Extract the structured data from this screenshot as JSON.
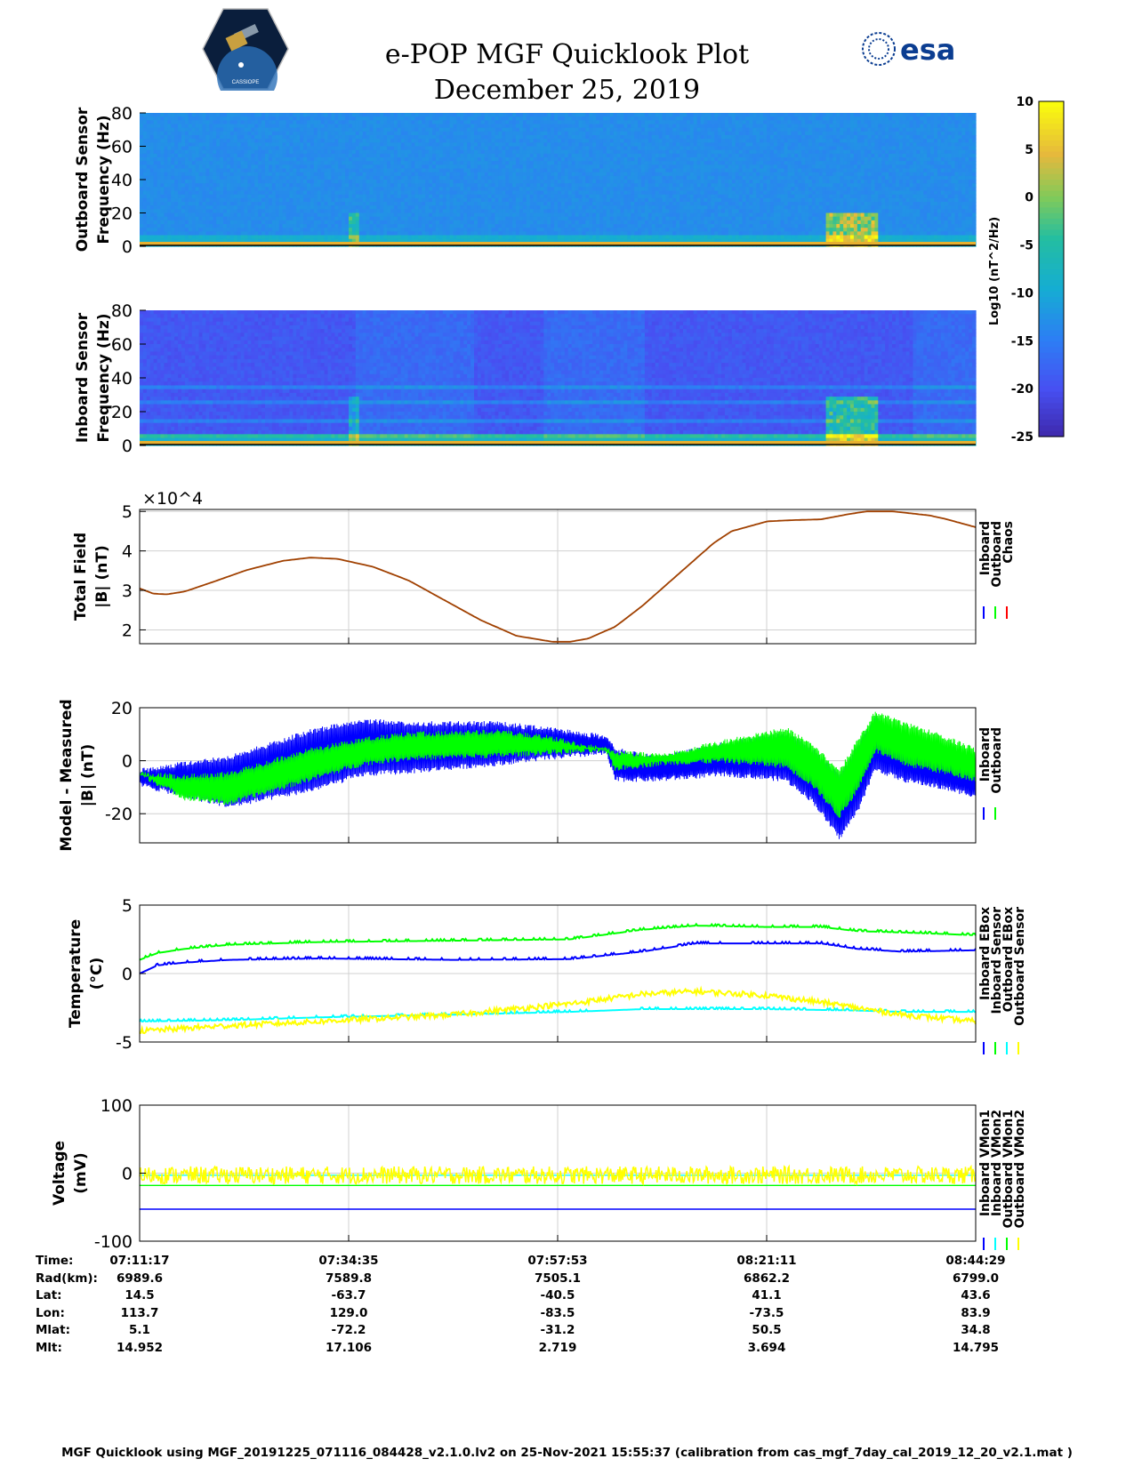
{
  "title": "e-POP MGF Quicklook Plot",
  "date": "December 25, 2019",
  "logos": {
    "left": "CASSIOPE",
    "right": "esa"
  },
  "colors": {
    "inboard": "#0000ff",
    "outboard": "#00ff00",
    "chaos": "#ff0000",
    "cyan": "#00ffff",
    "yellow": "#ffff00",
    "chaosLine": "#a04000",
    "grid": "#d0d0d0"
  },
  "footer": "MGF Quicklook using MGF_20191225_071116_084428_v2.1.0.lv2 on 25-Nov-2021 15:55:37 (calibration from cas_mgf_7day_cal_2019_12_20_v2.1.mat )",
  "position_table": {
    "labels": [
      "Time:",
      "Rad(km):",
      "Lat:",
      "Lon:",
      "Mlat:",
      "Mlt:"
    ],
    "columns": [
      [
        "07:11:17",
        "6989.6",
        "14.5",
        "113.7",
        "5.1",
        "14.952"
      ],
      [
        "07:34:35",
        "7589.8",
        "-63.7",
        "129.0",
        "-72.2",
        "17.106"
      ],
      [
        "07:57:53",
        "7505.1",
        "-40.5",
        "-83.5",
        "-31.2",
        "2.719"
      ],
      [
        "08:21:11",
        "6862.2",
        "41.1",
        "-73.5",
        "50.5",
        "3.694"
      ],
      [
        "08:44:29",
        "6799.0",
        "43.6",
        "83.9",
        "34.8",
        "14.795"
      ]
    ]
  },
  "chart_data": [
    {
      "type": "heatmap",
      "name": "outboard-spectrogram",
      "ylabel": [
        "Outboard Sensor",
        "Frequency (Hz)"
      ],
      "ylim": [
        0,
        80
      ],
      "yticks": [
        0,
        20,
        40,
        60,
        80
      ],
      "colorbar": {
        "label": "Log10 (nT^2/Hz)",
        "clim": [
          -25,
          10
        ],
        "ticks": [
          10,
          5,
          0,
          -5,
          -10,
          -15,
          -20,
          -25
        ]
      }
    },
    {
      "type": "heatmap",
      "name": "inboard-spectrogram",
      "ylabel": [
        "Inboard Sensor",
        "Frequency (Hz)"
      ],
      "ylim": [
        0,
        80
      ],
      "yticks": [
        0,
        20,
        40,
        60,
        80
      ]
    },
    {
      "type": "line",
      "name": "total-field",
      "ylabel": [
        "Total Field",
        "|B| (nT)"
      ],
      "exponent": "×10^4",
      "ylim": [
        1.65,
        5.05
      ],
      "yticks": [
        2,
        3,
        4,
        5
      ],
      "x_minutes": [
        0,
        1.5,
        3,
        5,
        8,
        12,
        16,
        19,
        22,
        26,
        30,
        34,
        38,
        42,
        46,
        48,
        50,
        53,
        56,
        60,
        64,
        66,
        70,
        73,
        76,
        79,
        81,
        84,
        88,
        90,
        93.2
      ],
      "values": [
        3.05,
        2.92,
        2.9,
        2.97,
        3.2,
        3.52,
        3.75,
        3.83,
        3.8,
        3.6,
        3.25,
        2.75,
        2.25,
        1.85,
        1.7,
        1.7,
        1.78,
        2.08,
        2.6,
        3.4,
        4.2,
        4.5,
        4.75,
        4.78,
        4.8,
        4.93,
        5.0,
        5.0,
        4.9,
        4.8,
        4.6
      ],
      "legend": [
        "Inboard",
        "Outboard",
        "Chaos"
      ]
    },
    {
      "type": "line",
      "name": "model-measured",
      "ylabel": [
        "Model - Measured",
        "|B| (nT)"
      ],
      "ylim": [
        -31,
        20
      ],
      "yticks": [
        -20,
        0,
        20
      ],
      "series": [
        {
          "name": "Inboard",
          "x_minutes": [
            0,
            5,
            10,
            19,
            25,
            30,
            40,
            45,
            52,
            53,
            58,
            65,
            72,
            75,
            78,
            80,
            82,
            85,
            88,
            93.2
          ],
          "upper": [
            -3,
            0,
            2,
            12,
            16,
            15,
            15,
            13,
            10,
            5,
            2,
            7,
            11,
            5,
            -5,
            6,
            17,
            10,
            5,
            -3
          ],
          "lower": [
            -10,
            -14,
            -18,
            -12,
            -6,
            -5,
            -2,
            0,
            2,
            -8,
            -8,
            -6,
            -8,
            -16,
            -30,
            -20,
            -4,
            -8,
            -10,
            -14
          ]
        },
        {
          "name": "Outboard",
          "x_minutes": [
            0,
            5,
            10,
            19,
            25,
            30,
            40,
            45,
            52,
            53,
            58,
            65,
            72,
            75,
            78,
            80,
            82,
            85,
            88,
            93.2
          ],
          "upper": [
            -4,
            -5,
            -4,
            5,
            9,
            11,
            12,
            10,
            5,
            4,
            3,
            8,
            13,
            7,
            -3,
            8,
            19,
            15,
            12,
            5
          ],
          "lower": [
            -6,
            -15,
            -17,
            -8,
            -2,
            0,
            1,
            2,
            3,
            -4,
            -2,
            -1,
            -3,
            -10,
            -22,
            -12,
            3,
            -2,
            -4,
            -8
          ]
        }
      ],
      "legend": [
        "Inboard",
        "Outboard"
      ]
    },
    {
      "type": "line",
      "name": "temperature",
      "ylabel": [
        "Temperature",
        "(°C)"
      ],
      "ylim": [
        -5,
        5
      ],
      "yticks": [
        -5,
        0,
        5
      ],
      "series": [
        {
          "name": "Inboard EBox",
          "x_minutes": [
            0,
            2,
            5,
            10,
            20,
            35,
            48,
            56,
            62,
            70,
            76,
            80,
            85,
            93.2
          ],
          "values": [
            0.0,
            0.6,
            0.8,
            1.0,
            1.1,
            1.0,
            1.05,
            1.6,
            2.2,
            2.2,
            2.2,
            1.8,
            1.6,
            1.7
          ]
        },
        {
          "name": "Inboard Sensor",
          "x_minutes": [
            0,
            2,
            5,
            10,
            20,
            35,
            48,
            56,
            62,
            70,
            76,
            80,
            85,
            93.2
          ],
          "values": [
            1.0,
            1.5,
            1.8,
            2.1,
            2.3,
            2.4,
            2.5,
            3.2,
            3.5,
            3.4,
            3.4,
            3.1,
            3.0,
            2.8
          ]
        },
        {
          "name": "Outboard EBox",
          "x_minutes": [
            0,
            10,
            20,
            35,
            48,
            56,
            62,
            70,
            80,
            85,
            93.2
          ],
          "values": [
            -3.5,
            -3.4,
            -3.2,
            -3.0,
            -2.8,
            -2.6,
            -2.6,
            -2.6,
            -2.7,
            -2.8,
            -2.8
          ]
        },
        {
          "name": "Outboard Sensor",
          "x_minutes": [
            0,
            10,
            20,
            35,
            48,
            56,
            62,
            70,
            76,
            80,
            85,
            93.2
          ],
          "values": [
            -4.2,
            -3.8,
            -3.5,
            -3.0,
            -2.2,
            -1.5,
            -1.3,
            -1.6,
            -2.1,
            -2.5,
            -3.0,
            -3.5
          ]
        }
      ],
      "legend": [
        "Inboard EBox",
        "Inboard Sensor",
        "Outboard EBox",
        "Outboard Sensor"
      ]
    },
    {
      "type": "line",
      "name": "voltage",
      "ylabel": [
        "Voltage",
        "(mV)"
      ],
      "ylim": [
        -100,
        100
      ],
      "yticks": [
        -100,
        0,
        100
      ],
      "series": [
        {
          "name": "Inboard VMon1",
          "x_minutes": [
            0,
            93.2
          ],
          "values": [
            -53,
            -53
          ]
        },
        {
          "name": "Inboard VMon2",
          "x_minutes": [
            0,
            93.2
          ],
          "values": [
            -3,
            -3
          ]
        },
        {
          "name": "Outboard VMon1",
          "x_minutes": [
            0,
            93.2
          ],
          "values": [
            -18,
            -18
          ]
        },
        {
          "name": "Outboard VMon2",
          "x_minutes": [
            0,
            93.2
          ],
          "values": [
            -3,
            -3
          ]
        }
      ],
      "legend": [
        "Inboard VMon1",
        "Inboard VMon2",
        "Outboard VMon1",
        "Outboard VMon2"
      ]
    }
  ]
}
